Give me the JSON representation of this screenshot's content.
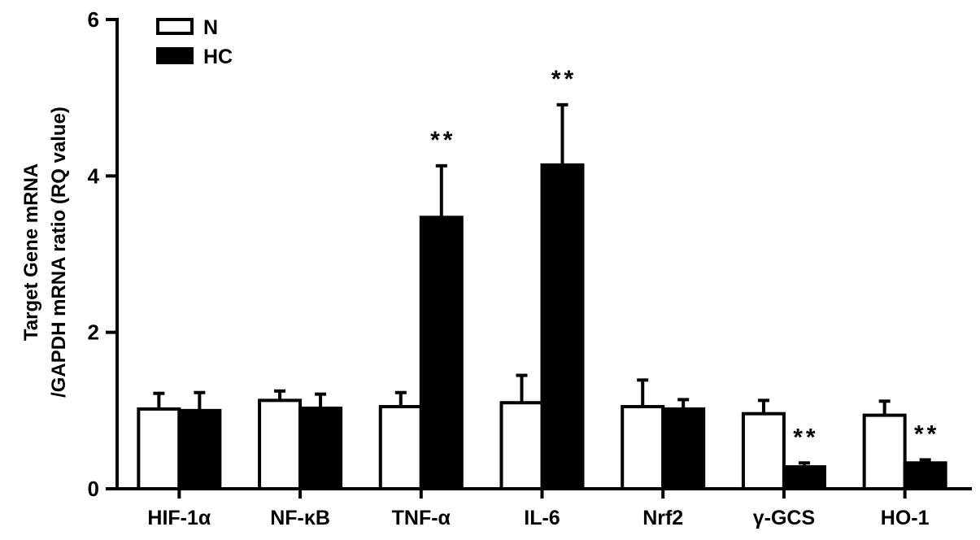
{
  "chart_data": {
    "type": "bar",
    "categories": [
      "HIF-1α",
      "NF-κB",
      "TNF-α",
      "IL-6",
      "Nrf2",
      "γ-GCS",
      "HO-1"
    ],
    "series": [
      {
        "name": "N",
        "fill": "#ffffff",
        "values": [
          1.02,
          1.13,
          1.05,
          1.1,
          1.05,
          0.96,
          0.94
        ],
        "errors": [
          0.2,
          0.12,
          0.18,
          0.35,
          0.34,
          0.17,
          0.18
        ]
      },
      {
        "name": "HC",
        "fill": "#000000",
        "values": [
          1.0,
          1.03,
          3.47,
          4.14,
          1.02,
          0.28,
          0.33
        ],
        "errors": [
          0.23,
          0.18,
          0.66,
          0.77,
          0.12,
          0.05,
          0.04
        ]
      }
    ],
    "annotations": [
      {
        "category": "TNF-α",
        "series": "HC",
        "text": "**"
      },
      {
        "category": "IL-6",
        "series": "HC",
        "text": "**"
      },
      {
        "category": "γ-GCS",
        "series": "HC",
        "text": "**"
      },
      {
        "category": "HO-1",
        "series": "HC",
        "text": "**"
      }
    ],
    "ylabel_line1": "Target Gene mRNA",
    "ylabel_line2": "/GAPDH mRNA ratio  (RQ value)",
    "ylim": [
      0,
      6
    ],
    "yticks": [
      0,
      2,
      4,
      6
    ],
    "legend_position": "top-left",
    "grid": false
  }
}
